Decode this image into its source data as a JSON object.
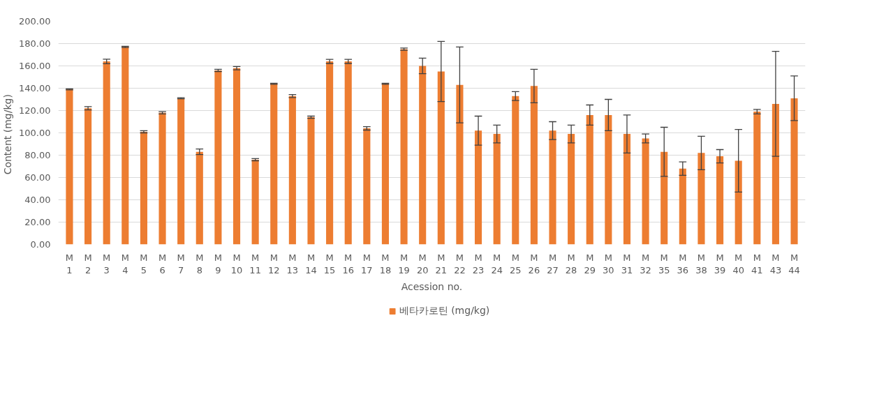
{
  "chart_data": {
    "type": "bar",
    "xlabel": "Acession no.",
    "ylabel": "Content  (mg/kg)",
    "categories": [
      "M1",
      "M2",
      "M3",
      "M4",
      "M5",
      "M6",
      "M7",
      "M8",
      "M9",
      "M10",
      "M11",
      "M12",
      "M13",
      "M14",
      "M15",
      "M16",
      "M17",
      "M18",
      "M19",
      "M20",
      "M21",
      "M22",
      "M23",
      "M24",
      "M25",
      "M26",
      "M27",
      "M28",
      "M29",
      "M30",
      "M31",
      "M32",
      "M35",
      "M36",
      "M38",
      "M39",
      "M40",
      "M41",
      "M43",
      "M44"
    ],
    "series": [
      {
        "name": "베타카로틴 (mg/kg)",
        "color": "#ed7d31",
        "values": [
          139,
          122,
          164,
          177,
          101,
          118,
          131,
          83,
          156,
          158,
          76,
          144,
          133,
          114,
          164,
          164,
          104,
          144,
          175,
          160,
          155,
          143,
          102,
          99,
          133,
          142,
          102,
          99,
          116,
          116,
          99,
          95,
          83,
          68,
          82,
          79,
          75,
          119,
          126,
          131
        ],
        "errors": [
          0.5,
          1.5,
          2,
          0.5,
          1,
          1,
          0.5,
          2.5,
          1,
          1.5,
          1,
          0.5,
          1.3,
          1,
          1.8,
          1.8,
          1.5,
          0.5,
          1,
          7,
          27,
          34,
          13,
          8,
          4,
          15,
          8,
          8,
          9,
          14,
          17,
          4,
          22,
          6,
          15,
          6,
          28,
          2,
          47,
          20
        ]
      }
    ],
    "ylim": [
      0,
      200
    ],
    "yticks": [
      {
        "value": 0,
        "label": "0.00"
      },
      {
        "value": 20,
        "label": "20.00"
      },
      {
        "value": 40,
        "label": "40.00"
      },
      {
        "value": 60,
        "label": "60.00"
      },
      {
        "value": 80,
        "label": "80.00"
      },
      {
        "value": 100,
        "label": "100.00"
      },
      {
        "value": 120,
        "label": "120.00"
      },
      {
        "value": 140,
        "label": "140.00"
      },
      {
        "value": 160,
        "label": "160.00"
      },
      {
        "value": 180,
        "label": "180.00"
      },
      {
        "value": 200,
        "label": "200.00"
      }
    ],
    "grid": "y",
    "legend": "bottom"
  }
}
